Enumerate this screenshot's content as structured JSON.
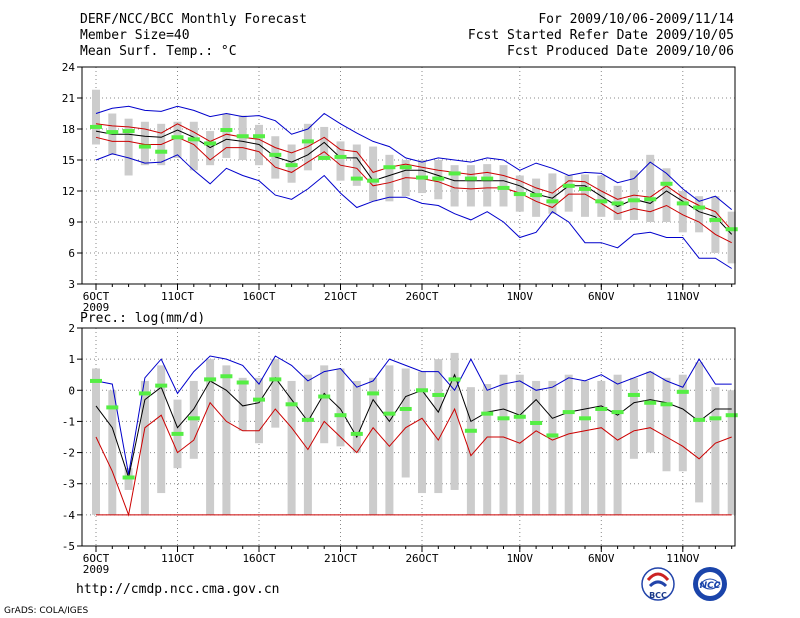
{
  "header": {
    "left": [
      "DERF/NCC/BCC Monthly Forecast",
      "Member Size=40",
      "Mean Surf. Temp.: °C"
    ],
    "right": [
      "For 2009/10/06-2009/11/14",
      "Fcst Started Refer Date 2009/10/05",
      "Fcst Produced Date 2009/10/06"
    ]
  },
  "footer": {
    "url": "http://cmdp.ncc.cma.gov.cn",
    "grads": "GrADS: COLA/IGES"
  },
  "logos": {
    "bcc": "BCC",
    "ncc": "NCC"
  },
  "colors": {
    "max_line": "#0000cc",
    "min_line": "#cc0000",
    "mean_line": "#000000",
    "box": "#cccccc",
    "green": "#55ee44",
    "grid": "#888888"
  },
  "chart_data": [
    {
      "type": "line",
      "title": "Mean Surf. Temp.: °C",
      "ylim": [
        3,
        24
      ],
      "yticks": [
        3,
        6,
        9,
        12,
        15,
        18,
        21,
        24
      ],
      "xtick_labels": [
        "6OCT",
        "11OCT",
        "16OCT",
        "21OCT",
        "26OCT",
        "1NOV",
        "6NOV",
        "11NOV"
      ],
      "xtick_day_index": [
        0,
        5,
        10,
        15,
        20,
        26,
        31,
        36
      ],
      "year_label": "2009",
      "days": 40,
      "series": [
        {
          "name": "max",
          "values": [
            19.5,
            20.0,
            20.2,
            19.8,
            19.7,
            20.2,
            19.8,
            19.2,
            19.5,
            19.2,
            19.3,
            18.8,
            17.5,
            18.0,
            19.5,
            18.5,
            17.6,
            16.8,
            16.3,
            15.2,
            14.8,
            15.2,
            15.0,
            14.8,
            15.2,
            15.0,
            14.0,
            14.7,
            14.2,
            13.5,
            13.8,
            13.7,
            12.8,
            13.2,
            14.8,
            13.7,
            12.2,
            11.0,
            11.5,
            10.2
          ]
        },
        {
          "name": "mean",
          "values": [
            17.8,
            17.5,
            17.5,
            17.3,
            17.2,
            17.9,
            17.2,
            16.2,
            17.0,
            16.8,
            16.5,
            15.3,
            14.8,
            15.5,
            16.7,
            15.2,
            15.2,
            13.0,
            13.5,
            14.0,
            14.0,
            13.5,
            13.0,
            13.0,
            13.0,
            13.0,
            12.5,
            11.7,
            11.3,
            12.5,
            12.5,
            11.5,
            10.5,
            11.2,
            10.8,
            12.0,
            11.0,
            10.0,
            9.5,
            7.8
          ]
        },
        {
          "name": "upper",
          "values": [
            18.5,
            18.3,
            18.2,
            18.0,
            17.6,
            18.5,
            17.7,
            16.8,
            17.5,
            17.2,
            17.0,
            16.2,
            15.7,
            16.3,
            17.2,
            16.0,
            15.8,
            13.8,
            14.3,
            14.6,
            14.3,
            14.0,
            13.8,
            13.6,
            13.8,
            13.5,
            13.0,
            12.3,
            11.8,
            13.0,
            12.9,
            12.0,
            11.2,
            11.6,
            11.4,
            12.5,
            11.4,
            10.6,
            10.0,
            8.2
          ]
        },
        {
          "name": "lower",
          "values": [
            17.2,
            16.8,
            16.8,
            16.5,
            16.5,
            17.2,
            16.5,
            15.0,
            16.2,
            16.2,
            15.8,
            14.3,
            13.8,
            14.8,
            15.8,
            14.5,
            14.2,
            12.5,
            12.8,
            13.3,
            13.2,
            12.9,
            12.3,
            12.2,
            12.3,
            12.3,
            11.8,
            11.0,
            10.4,
            11.7,
            11.7,
            10.8,
            9.8,
            10.3,
            10.0,
            10.6,
            9.7,
            9.0,
            7.8,
            7.0
          ]
        },
        {
          "name": "min",
          "values": [
            15.0,
            15.6,
            15.2,
            14.7,
            14.8,
            15.5,
            14.0,
            12.7,
            14.2,
            13.5,
            13.0,
            11.6,
            11.2,
            12.2,
            13.5,
            11.8,
            10.4,
            11.0,
            11.4,
            11.4,
            10.8,
            10.6,
            9.8,
            9.2,
            10.0,
            9.0,
            7.5,
            8.0,
            10.0,
            9.0,
            7.0,
            7.0,
            6.5,
            7.8,
            8.0,
            7.5,
            7.5,
            5.5,
            5.5,
            4.5
          ]
        },
        {
          "name": "box_high",
          "values": [
            21.8,
            19.5,
            19.0,
            18.7,
            18.5,
            18.7,
            18.7,
            17.8,
            19.5,
            19.3,
            18.4,
            17.3,
            16.5,
            18.5,
            18.2,
            16.8,
            16.5,
            16.3,
            15.5,
            15.0,
            15.0,
            15.0,
            14.5,
            14.5,
            14.6,
            14.5,
            13.5,
            13.2,
            13.7,
            13.5,
            13.6,
            13.5,
            12.5,
            14.0,
            15.5,
            14.2,
            12.0,
            11.5,
            11.5,
            10.0
          ]
        },
        {
          "name": "box_low",
          "values": [
            16.5,
            15.5,
            13.5,
            14.5,
            14.5,
            15.2,
            14.0,
            14.5,
            15.2,
            15.0,
            14.5,
            13.2,
            12.8,
            14.0,
            15.0,
            13.0,
            12.5,
            11.0,
            11.0,
            11.5,
            11.8,
            11.2,
            10.5,
            10.5,
            10.5,
            10.5,
            10.0,
            9.5,
            9.8,
            10.0,
            9.5,
            9.5,
            9.2,
            9.2,
            9.0,
            9.0,
            8.0,
            8.0,
            6.0,
            5.0
          ]
        },
        {
          "name": "observed",
          "values": [
            18.2,
            17.7,
            17.8,
            16.3,
            15.8,
            17.2,
            17.0,
            16.6,
            17.9,
            17.3,
            17.3,
            15.5,
            14.5,
            16.8,
            15.2,
            15.3,
            13.2,
            13.0,
            14.3,
            14.3,
            13.3,
            13.2,
            13.7,
            13.2,
            13.2,
            12.3,
            11.7,
            11.6,
            11.0,
            12.5,
            12.2,
            11.0,
            10.8,
            11.1,
            11.2,
            12.7,
            10.8,
            10.4,
            9.2,
            8.3
          ]
        }
      ]
    },
    {
      "type": "line",
      "title": "Prec.: log(mm/d)",
      "ylim": [
        -5,
        2
      ],
      "yticks": [
        -5,
        -4,
        -3,
        -2,
        -1,
        0,
        1,
        2
      ],
      "xtick_labels": [
        "6OCT",
        "11OCT",
        "16OCT",
        "21OCT",
        "26OCT",
        "1NOV",
        "6NOV",
        "11NOV"
      ],
      "xtick_day_index": [
        0,
        5,
        10,
        15,
        20,
        26,
        31,
        36
      ],
      "year_label": "2009",
      "days": 40,
      "series": [
        {
          "name": "max",
          "values": [
            0.3,
            0.2,
            -2.7,
            0.4,
            1.0,
            -0.1,
            0.6,
            1.1,
            1.0,
            0.8,
            0.2,
            1.1,
            0.8,
            0.3,
            0.6,
            0.7,
            0.1,
            0.3,
            1.0,
            0.8,
            0.6,
            0.6,
            0.0,
            1.0,
            0.0,
            0.2,
            0.3,
            0.0,
            0.1,
            0.4,
            0.3,
            0.5,
            0.2,
            0.4,
            0.6,
            0.3,
            0.1,
            1.0,
            0.2,
            0.2
          ]
        },
        {
          "name": "mean",
          "values": [
            -0.5,
            -1.2,
            -2.8,
            -0.3,
            0.1,
            -1.2,
            -0.6,
            0.3,
            0.0,
            -0.5,
            -0.4,
            0.4,
            -0.3,
            -1.0,
            -0.1,
            -0.6,
            -1.5,
            -0.3,
            -1.0,
            -0.2,
            0.0,
            -0.7,
            0.5,
            -1.0,
            -0.7,
            -0.6,
            -0.8,
            -0.3,
            -0.9,
            -0.7,
            -0.6,
            -0.5,
            -0.8,
            -0.4,
            -0.3,
            -0.4,
            -0.6,
            -1.0,
            -0.6,
            -0.6
          ]
        },
        {
          "name": "min",
          "values": [
            -1.5,
            -2.6,
            -4.0,
            -1.2,
            -0.8,
            -2.0,
            -1.6,
            -0.4,
            -1.0,
            -1.3,
            -1.3,
            -0.6,
            -1.2,
            -1.9,
            -1.0,
            -1.5,
            -2.0,
            -1.2,
            -1.8,
            -1.2,
            -0.9,
            -1.6,
            -0.6,
            -2.1,
            -1.5,
            -1.5,
            -1.7,
            -1.3,
            -1.6,
            -1.4,
            -1.3,
            -1.2,
            -1.6,
            -1.3,
            -1.2,
            -1.5,
            -1.8,
            -2.2,
            -1.7,
            -1.5
          ]
        },
        {
          "name": "floor",
          "values": [
            -4,
            -4,
            -4,
            -4,
            -4,
            -4,
            -4,
            -4,
            -4,
            -4,
            -4,
            -4,
            -4,
            -4,
            -4,
            -4,
            -4,
            -4,
            -4,
            -4,
            -4,
            -4,
            -4,
            -4,
            -4,
            -4,
            -4,
            -4,
            -4,
            -4,
            -4,
            -4,
            -4,
            -4,
            -4,
            -4,
            -4,
            -4,
            -4,
            -4
          ]
        },
        {
          "name": "box_high",
          "values": [
            0.7,
            0.0,
            -2.5,
            0.3,
            0.8,
            -0.3,
            0.3,
            1.0,
            0.8,
            0.4,
            0.4,
            1.0,
            0.3,
            0.5,
            0.8,
            0.7,
            0.3,
            0.4,
            0.8,
            0.7,
            0.6,
            1.0,
            1.2,
            0.1,
            0.2,
            0.5,
            0.5,
            0.3,
            0.3,
            0.5,
            0.3,
            0.3,
            0.5,
            0.4,
            0.6,
            0.4,
            0.5,
            0.9,
            0.1,
            0.0
          ]
        },
        {
          "name": "box_low",
          "values": [
            -4.0,
            -4.0,
            -3.2,
            -4.0,
            -3.3,
            -2.5,
            -2.2,
            -4.0,
            -4.0,
            -1.3,
            -1.7,
            -1.2,
            -4.0,
            -4.0,
            -1.7,
            -1.8,
            -2.0,
            -4.0,
            -4.0,
            -2.8,
            -3.3,
            -3.3,
            -3.2,
            -4.0,
            -4.0,
            -4.0,
            -4.0,
            -4.0,
            -4.0,
            -4.0,
            -4.0,
            -4.0,
            -4.0,
            -2.2,
            -2.0,
            -2.6,
            -2.6,
            -3.6,
            -4.0,
            -4.0
          ]
        },
        {
          "name": "observed",
          "values": [
            0.3,
            -0.55,
            -2.8,
            -0.1,
            0.15,
            -1.4,
            -0.9,
            0.35,
            0.45,
            0.25,
            -0.3,
            0.35,
            -0.45,
            -0.95,
            -0.2,
            -0.8,
            -1.4,
            -0.1,
            -0.75,
            -0.6,
            0.0,
            -0.15,
            0.35,
            -1.3,
            -0.75,
            -0.9,
            -0.85,
            -1.05,
            -1.45,
            -0.7,
            -0.9,
            -0.6,
            -0.7,
            -0.15,
            -0.4,
            -0.45,
            -0.05,
            -0.95,
            -0.9,
            -0.8
          ]
        }
      ]
    }
  ]
}
